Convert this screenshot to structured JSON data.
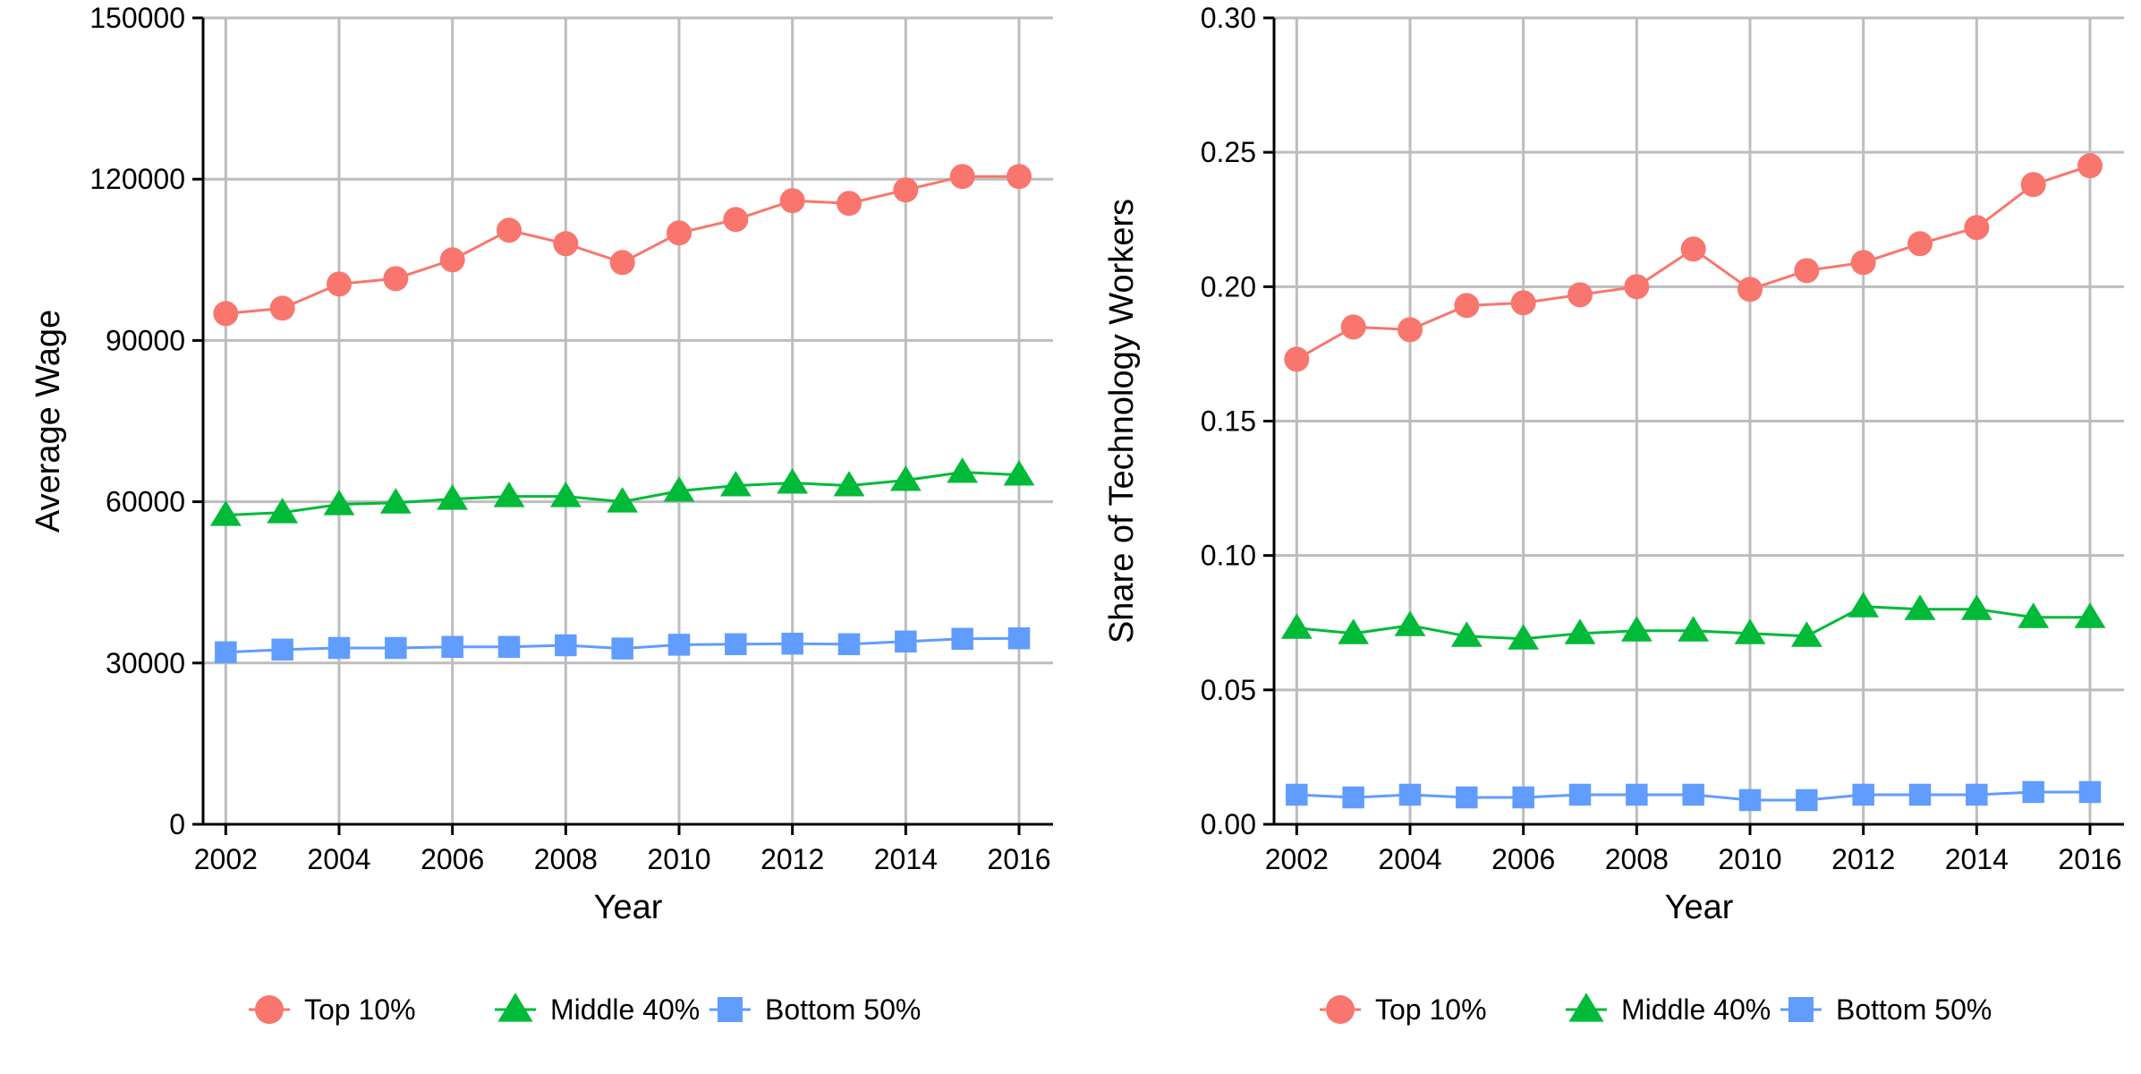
{
  "chart_data": [
    {
      "type": "line",
      "xlabel": "Year",
      "ylabel": "Average Wage",
      "xlim": [
        2001.6,
        2016.6
      ],
      "ylim": [
        0,
        150000
      ],
      "x_ticks": [
        2002,
        2004,
        2006,
        2008,
        2010,
        2012,
        2014,
        2016
      ],
      "x_tick_labels": [
        "2002",
        "2004",
        "2006",
        "2008",
        "2010",
        "2012",
        "2014",
        "2016"
      ],
      "y_ticks": [
        0,
        30000,
        60000,
        90000,
        120000,
        150000
      ],
      "y_tick_labels": [
        "0",
        "30000",
        "60000",
        "90000",
        "120000",
        "150000"
      ],
      "grid": true,
      "legend_position": "bottom",
      "x": [
        2002,
        2003,
        2004,
        2005,
        2006,
        2007,
        2008,
        2009,
        2010,
        2011,
        2012,
        2013,
        2014,
        2015,
        2016
      ],
      "series": [
        {
          "name": "Top 10%",
          "color": "#F8766D",
          "marker": "circle",
          "values": [
            95000,
            96000,
            100500,
            101500,
            105000,
            110500,
            108000,
            104500,
            110000,
            112500,
            116000,
            115500,
            118000,
            120500,
            120500
          ]
        },
        {
          "name": "Middle 40%",
          "color": "#00BA38",
          "marker": "triangle",
          "values": [
            57500,
            58000,
            59500,
            59800,
            60500,
            61000,
            61000,
            60000,
            62000,
            63000,
            63500,
            63000,
            64000,
            65500,
            65000
          ]
        },
        {
          "name": "Bottom 50%",
          "color": "#619CFF",
          "marker": "square",
          "values": [
            32000,
            32500,
            32800,
            32800,
            33000,
            33000,
            33300,
            32700,
            33400,
            33500,
            33600,
            33500,
            34000,
            34500,
            34600
          ]
        }
      ]
    },
    {
      "type": "line",
      "xlabel": "Year",
      "ylabel": "Share of Technology Workers",
      "xlim": [
        2001.6,
        2016.6
      ],
      "ylim": [
        0,
        0.3
      ],
      "x_ticks": [
        2002,
        2004,
        2006,
        2008,
        2010,
        2012,
        2014,
        2016
      ],
      "x_tick_labels": [
        "2002",
        "2004",
        "2006",
        "2008",
        "2010",
        "2012",
        "2014",
        "2016"
      ],
      "y_ticks": [
        0,
        0.05,
        0.1,
        0.15,
        0.2,
        0.25,
        0.3
      ],
      "y_tick_labels": [
        "0.00",
        "0.05",
        "0.10",
        "0.15",
        "0.20",
        "0.25",
        "0.30"
      ],
      "grid": true,
      "legend_position": "bottom",
      "x": [
        2002,
        2003,
        2004,
        2005,
        2006,
        2007,
        2008,
        2009,
        2010,
        2011,
        2012,
        2013,
        2014,
        2015,
        2016
      ],
      "series": [
        {
          "name": "Top 10%",
          "color": "#F8766D",
          "marker": "circle",
          "values": [
            0.173,
            0.185,
            0.184,
            0.193,
            0.194,
            0.197,
            0.2,
            0.214,
            0.199,
            0.206,
            0.209,
            0.216,
            0.222,
            0.238,
            0.245
          ]
        },
        {
          "name": "Middle 40%",
          "color": "#00BA38",
          "marker": "triangle",
          "values": [
            0.073,
            0.071,
            0.074,
            0.07,
            0.069,
            0.071,
            0.072,
            0.072,
            0.071,
            0.07,
            0.081,
            0.08,
            0.08,
            0.077,
            0.077
          ]
        },
        {
          "name": "Bottom 50%",
          "color": "#619CFF",
          "marker": "square",
          "values": [
            0.011,
            0.01,
            0.011,
            0.01,
            0.01,
            0.011,
            0.011,
            0.011,
            0.009,
            0.009,
            0.011,
            0.011,
            0.011,
            0.012,
            0.012
          ]
        }
      ]
    }
  ]
}
